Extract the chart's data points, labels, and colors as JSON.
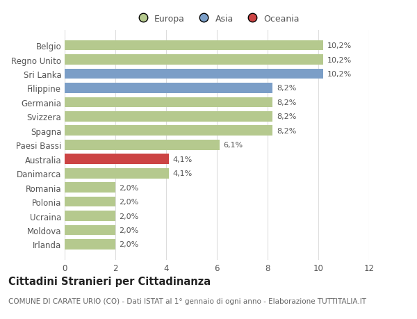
{
  "countries": [
    "Belgio",
    "Regno Unito",
    "Sri Lanka",
    "Filippine",
    "Germania",
    "Svizzera",
    "Spagna",
    "Paesi Bassi",
    "Australia",
    "Danimarca",
    "Romania",
    "Polonia",
    "Ucraina",
    "Moldova",
    "Irlanda"
  ],
  "values": [
    10.2,
    10.2,
    10.2,
    8.2,
    8.2,
    8.2,
    8.2,
    6.1,
    4.1,
    4.1,
    2.0,
    2.0,
    2.0,
    2.0,
    2.0
  ],
  "labels": [
    "10,2%",
    "10,2%",
    "10,2%",
    "8,2%",
    "8,2%",
    "8,2%",
    "8,2%",
    "6,1%",
    "4,1%",
    "4,1%",
    "2,0%",
    "2,0%",
    "2,0%",
    "2,0%",
    "2,0%"
  ],
  "continents": [
    "Europa",
    "Europa",
    "Asia",
    "Asia",
    "Europa",
    "Europa",
    "Europa",
    "Europa",
    "Oceania",
    "Europa",
    "Europa",
    "Europa",
    "Europa",
    "Europa",
    "Europa"
  ],
  "color_map": {
    "Europa": "#b5c98e",
    "Asia": "#7b9ec7",
    "Oceania": "#cc4444"
  },
  "title": "Cittadini Stranieri per Cittadinanza",
  "subtitle": "COMUNE DI CARATE URIO (CO) - Dati ISTAT al 1° gennaio di ogni anno - Elaborazione TUTTITALIA.IT",
  "xlim": [
    0,
    12
  ],
  "xticks": [
    0,
    2,
    4,
    6,
    8,
    10,
    12
  ],
  "background_color": "#ffffff",
  "grid_color": "#dddddd",
  "bar_height": 0.72,
  "label_fontsize": 8,
  "title_fontsize": 10.5,
  "subtitle_fontsize": 7.5,
  "tick_fontsize": 8.5,
  "legend_fontsize": 9
}
